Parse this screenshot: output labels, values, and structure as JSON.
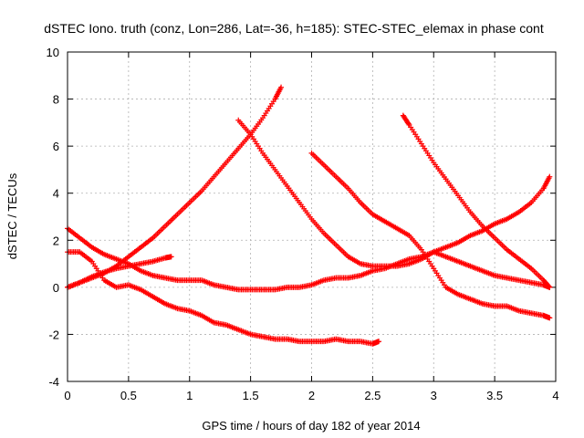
{
  "chart_data": {
    "type": "scatter",
    "title": "dSTEC Iono. truth (conz, Lon=286, Lat=-36, h=185): STEC-STEC_elemax in phase cont",
    "xlabel": "GPS time / hours of day 182 of year 2014",
    "ylabel": "dSTEC  / TECUs",
    "xlim": [
      0,
      4
    ],
    "ylim": [
      -4,
      10
    ],
    "xticks": [
      0,
      0.5,
      1,
      1.5,
      2,
      2.5,
      3,
      3.5,
      4
    ],
    "xtick_labels": [
      "0",
      "0.5",
      "1",
      "1.5",
      "2",
      "2.5",
      "3",
      "3.5",
      "4"
    ],
    "yticks": [
      -4,
      -2,
      0,
      2,
      4,
      6,
      8,
      10
    ],
    "ytick_labels": [
      "-4",
      "-2",
      "0",
      "2",
      "4",
      "6",
      "8",
      "10"
    ],
    "grid": true,
    "legend": "none",
    "marker": "+",
    "color": "#ff0000",
    "series": [
      {
        "x": [
          0,
          0.1,
          0.2,
          0.3,
          0.4,
          0.5,
          0.6,
          0.7,
          0.8,
          0.85
        ],
        "y": [
          0,
          0.2,
          0.45,
          0.65,
          0.8,
          0.9,
          1.0,
          1.1,
          1.25,
          1.3
        ]
      },
      {
        "x": [
          0,
          0.1,
          0.2,
          0.3,
          0.4,
          0.5,
          0.6,
          0.7,
          0.8,
          0.9,
          1.0,
          1.1,
          1.2,
          1.3,
          1.4,
          1.5,
          1.6,
          1.7,
          1.75
        ],
        "y": [
          0,
          0.2,
          0.4,
          0.6,
          0.9,
          1.3,
          1.7,
          2.1,
          2.6,
          3.1,
          3.6,
          4.1,
          4.7,
          5.3,
          5.9,
          6.5,
          7.2,
          8.0,
          8.5
        ]
      },
      {
        "x": [
          0,
          0.1,
          0.2,
          0.3,
          0.4,
          0.5,
          0.6,
          0.7,
          0.8,
          0.9,
          1.0,
          1.1,
          1.2,
          1.3,
          1.4,
          1.5,
          1.6,
          1.7,
          1.8,
          1.9,
          2.0,
          2.1,
          2.2,
          2.3,
          2.4,
          2.5,
          2.6,
          2.7,
          2.8,
          2.9,
          3.0,
          3.1,
          3.2,
          3.3,
          3.4,
          3.5,
          3.6,
          3.7,
          3.8,
          3.9,
          3.95
        ],
        "y": [
          2.5,
          2.1,
          1.7,
          1.4,
          1.2,
          1.0,
          0.7,
          0.5,
          0.4,
          0.3,
          0.3,
          0.3,
          0.1,
          0.0,
          -0.1,
          -0.1,
          -0.1,
          -0.1,
          0.0,
          0.0,
          0.1,
          0.3,
          0.4,
          0.4,
          0.5,
          0.7,
          0.8,
          1.0,
          1.2,
          1.3,
          1.5,
          1.7,
          1.9,
          2.2,
          2.4,
          2.7,
          2.9,
          3.2,
          3.6,
          4.2,
          4.7
        ]
      },
      {
        "x": [
          0,
          0.1,
          0.2,
          0.3,
          0.4,
          0.5,
          0.6,
          0.7,
          0.8,
          0.9,
          1.0,
          1.1,
          1.2,
          1.3,
          1.4,
          1.5,
          1.6,
          1.7,
          1.8,
          1.9,
          2.0,
          2.1,
          2.2,
          2.3,
          2.4,
          2.5,
          2.55
        ],
        "y": [
          1.5,
          1.5,
          1.1,
          0.3,
          0.0,
          0.1,
          -0.1,
          -0.4,
          -0.7,
          -0.9,
          -1.0,
          -1.2,
          -1.5,
          -1.6,
          -1.8,
          -2.0,
          -2.1,
          -2.2,
          -2.2,
          -2.3,
          -2.3,
          -2.3,
          -2.2,
          -2.3,
          -2.3,
          -2.4,
          -2.3
        ]
      },
      {
        "x": [
          1.4,
          1.5,
          1.6,
          1.7,
          1.8,
          1.9,
          2.0,
          2.1,
          2.2,
          2.3,
          2.4,
          2.5,
          2.6,
          2.7,
          2.8,
          2.9,
          3.0,
          3.1,
          3.2,
          3.3,
          3.4,
          3.5,
          3.6,
          3.7,
          3.8,
          3.9,
          3.95
        ],
        "y": [
          7.1,
          6.5,
          5.7,
          5.0,
          4.3,
          3.6,
          2.9,
          2.3,
          1.8,
          1.3,
          1.0,
          0.9,
          0.9,
          0.9,
          1.0,
          1.2,
          1.5,
          1.3,
          1.1,
          0.9,
          0.7,
          0.5,
          0.4,
          0.3,
          0.2,
          0.1,
          0.0
        ]
      },
      {
        "x": [
          2.0,
          2.1,
          2.2,
          2.3,
          2.4,
          2.5,
          2.6,
          2.7,
          2.8,
          2.9,
          3.0,
          3.1,
          3.2,
          3.3,
          3.4,
          3.5,
          3.6,
          3.7,
          3.8,
          3.9,
          3.95
        ],
        "y": [
          5.7,
          5.2,
          4.7,
          4.2,
          3.6,
          3.1,
          2.8,
          2.5,
          2.2,
          1.6,
          0.8,
          0.0,
          -0.3,
          -0.5,
          -0.7,
          -0.8,
          -0.8,
          -1.0,
          -1.1,
          -1.2,
          -1.3
        ]
      },
      {
        "x": [
          2.75,
          2.8,
          2.9,
          3.0,
          3.1,
          3.2,
          3.3,
          3.4,
          3.5,
          3.6,
          3.7,
          3.8,
          3.9,
          3.95
        ],
        "y": [
          7.3,
          6.9,
          6.1,
          5.3,
          4.6,
          3.9,
          3.2,
          2.6,
          2.1,
          1.6,
          1.2,
          0.8,
          0.3,
          0.0
        ]
      }
    ]
  }
}
